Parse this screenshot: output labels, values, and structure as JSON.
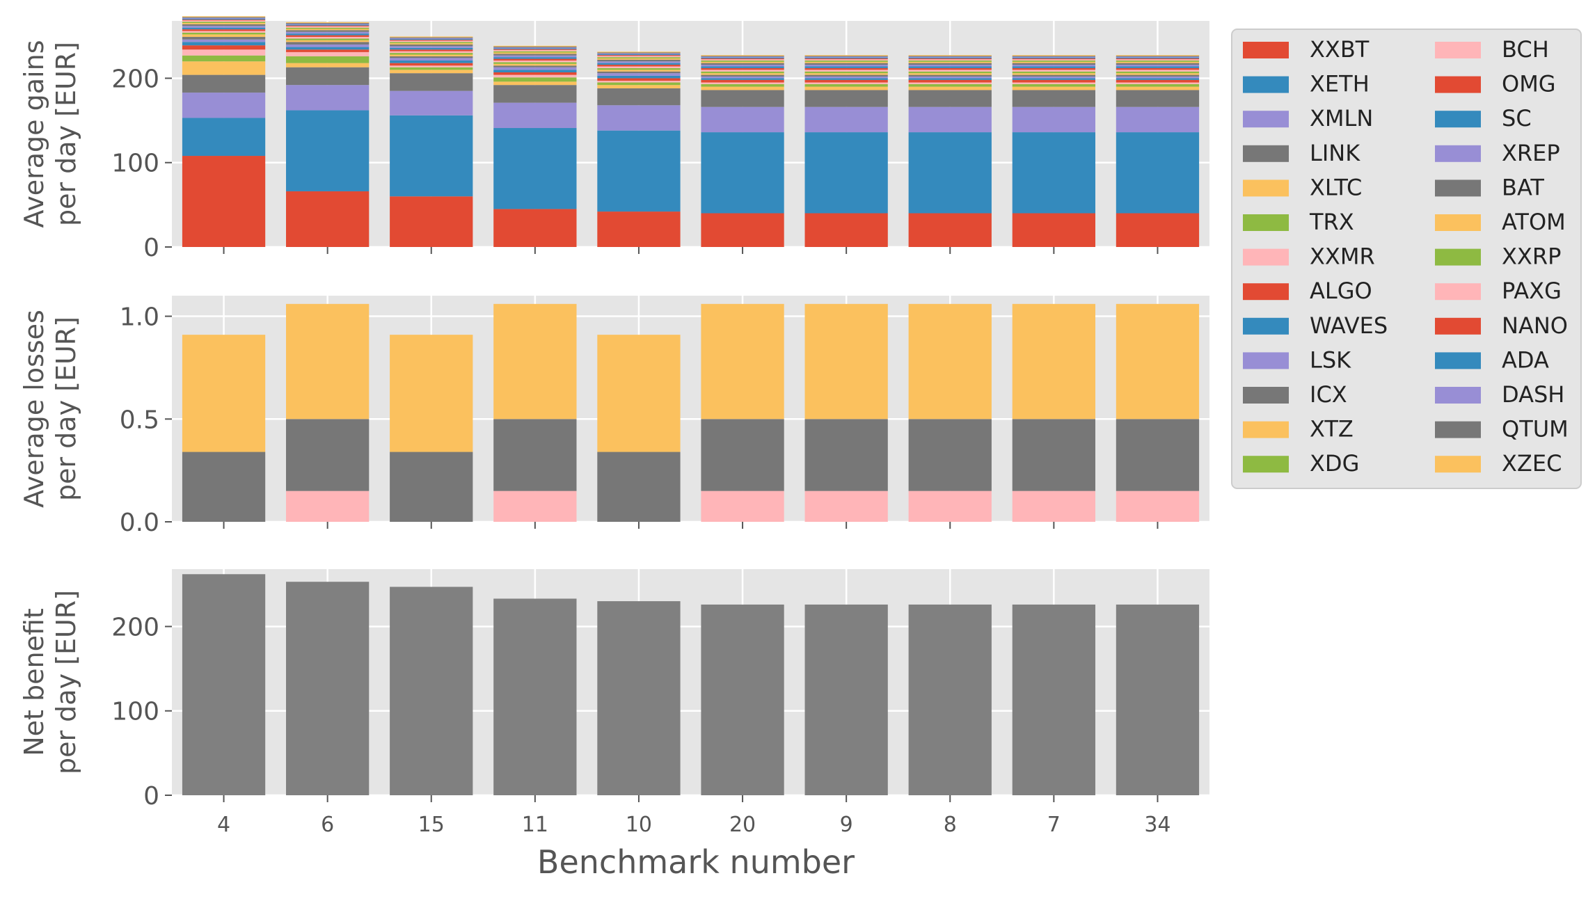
{
  "figure": {
    "xlabel": "Benchmark number",
    "categories": [
      "4",
      "6",
      "15",
      "11",
      "10",
      "20",
      "9",
      "8",
      "7",
      "34"
    ]
  },
  "chart_data": [
    {
      "type": "bar",
      "stacked": true,
      "ylabel_line1": "Average gains",
      "ylabel_line2": "per day [EUR]",
      "categories": [
        "4",
        "6",
        "15",
        "11",
        "10",
        "20",
        "9",
        "8",
        "7",
        "34"
      ],
      "ylim": [
        0,
        268
      ],
      "yticks": [
        "0",
        "100",
        "200"
      ],
      "ytick_values": [
        0,
        100,
        200
      ],
      "grid": true,
      "series": [
        {
          "name": "XXBT",
          "color": "#E24A33",
          "values": [
            108,
            66,
            60,
            45,
            42,
            40,
            40,
            40,
            40,
            40
          ]
        },
        {
          "name": "XETH",
          "color": "#348ABD",
          "values": [
            45,
            96,
            96,
            96,
            96,
            96,
            96,
            96,
            96,
            96
          ]
        },
        {
          "name": "XMLN",
          "color": "#988ED5",
          "values": [
            30,
            30,
            29,
            30,
            30,
            30,
            30,
            30,
            30,
            30
          ]
        },
        {
          "name": "LINK",
          "color": "#777777",
          "values": [
            21,
            21,
            21,
            21,
            20,
            20,
            20,
            20,
            20,
            20
          ]
        },
        {
          "name": "XLTC",
          "color": "#FBC15E",
          "values": [
            16,
            5,
            4,
            4,
            4,
            4,
            4,
            4,
            4,
            4
          ]
        },
        {
          "name": "TRX",
          "color": "#8EBA42",
          "values": [
            7,
            8,
            3,
            5,
            3,
            3,
            3,
            3,
            3,
            3
          ]
        },
        {
          "name": "XXMR",
          "color": "#FFB5B8",
          "values": [
            7,
            5,
            2,
            3,
            2,
            2,
            2,
            2,
            2,
            2
          ]
        },
        {
          "name": "ALGO",
          "color": "#E24A33",
          "values": [
            5,
            3,
            3,
            3,
            3,
            3,
            3,
            3,
            3,
            3
          ]
        },
        {
          "name": "WAVES",
          "color": "#348ABD",
          "values": [
            4,
            3,
            3,
            3,
            3,
            2,
            2,
            2,
            2,
            2
          ]
        },
        {
          "name": "LSK",
          "color": "#988ED5",
          "values": [
            3,
            3,
            3,
            3,
            3,
            2,
            2,
            2,
            2,
            2
          ]
        },
        {
          "name": "ICX",
          "color": "#777777",
          "values": [
            3,
            3,
            2,
            2,
            2,
            2,
            2,
            2,
            2,
            2
          ]
        },
        {
          "name": "XTZ",
          "color": "#FBC15E",
          "values": [
            3,
            2,
            2,
            2,
            2,
            2,
            2,
            2,
            2,
            2
          ]
        },
        {
          "name": "XDG",
          "color": "#8EBA42",
          "values": [
            2,
            2,
            2,
            2,
            2,
            2,
            2,
            2,
            2,
            2
          ]
        },
        {
          "name": "BCH",
          "color": "#FFB5B8",
          "values": [
            2,
            2,
            2,
            2,
            2,
            2,
            2,
            2,
            2,
            2
          ]
        },
        {
          "name": "OMG",
          "color": "#E24A33",
          "values": [
            2,
            2,
            2,
            2,
            2,
            2,
            2,
            2,
            2,
            2
          ]
        },
        {
          "name": "SC",
          "color": "#348ABD",
          "values": [
            2,
            2,
            2,
            2,
            2,
            2,
            2,
            2,
            2,
            2
          ]
        },
        {
          "name": "XREP",
          "color": "#988ED5",
          "values": [
            2,
            2,
            2,
            2,
            2,
            2,
            2,
            2,
            2,
            2
          ]
        },
        {
          "name": "BAT",
          "color": "#777777",
          "values": [
            2,
            2,
            2,
            2,
            2,
            2,
            2,
            2,
            2,
            2
          ]
        },
        {
          "name": "ATOM",
          "color": "#FBC15E",
          "values": [
            1.5,
            1.5,
            1.5,
            1.5,
            1.5,
            1.5,
            1.5,
            1.5,
            1.5,
            1.5
          ]
        },
        {
          "name": "XXRP",
          "color": "#8EBA42",
          "values": [
            1.5,
            1.5,
            1.5,
            1.5,
            1.5,
            1.5,
            1.5,
            1.5,
            1.5,
            1.5
          ]
        },
        {
          "name": "PAXG",
          "color": "#FFB5B8",
          "values": [
            1.5,
            1.5,
            1.5,
            1.5,
            1.5,
            1.5,
            1.5,
            1.5,
            1.5,
            1.5
          ]
        },
        {
          "name": "NANO",
          "color": "#E24A33",
          "values": [
            1,
            1,
            1,
            1,
            1,
            1,
            1,
            1,
            1,
            1
          ]
        },
        {
          "name": "ADA",
          "color": "#348ABD",
          "values": [
            1,
            1,
            1,
            1,
            1,
            1,
            1,
            1,
            1,
            1
          ]
        },
        {
          "name": "DASH",
          "color": "#988ED5",
          "values": [
            1,
            1,
            1,
            1,
            1,
            1,
            1,
            1,
            1,
            1
          ]
        },
        {
          "name": "QTUM",
          "color": "#777777",
          "values": [
            1,
            1,
            1,
            1,
            1,
            1,
            1,
            1,
            1,
            1
          ]
        },
        {
          "name": "XZEC",
          "color": "#FBC15E",
          "values": [
            1,
            1,
            1,
            1,
            1,
            1,
            1,
            1,
            1,
            1
          ]
        }
      ]
    },
    {
      "type": "bar",
      "stacked": true,
      "ylabel_line1": "Average losses",
      "ylabel_line2": "per day [EUR]",
      "categories": [
        "4",
        "6",
        "15",
        "11",
        "10",
        "20",
        "9",
        "8",
        "7",
        "34"
      ],
      "ylim": [
        0,
        1.1
      ],
      "yticks": [
        "0.0",
        "0.5",
        "1.0"
      ],
      "ytick_values": [
        0,
        0.5,
        1.0
      ],
      "grid": true,
      "series": [
        {
          "color": "#FFB5B8",
          "values": [
            0,
            0.15,
            0,
            0.15,
            0,
            0.15,
            0.15,
            0.15,
            0.15,
            0.15
          ]
        },
        {
          "color": "#777777",
          "values": [
            0.34,
            0.35,
            0.34,
            0.35,
            0.34,
            0.35,
            0.35,
            0.35,
            0.35,
            0.35
          ]
        },
        {
          "color": "#FBC15E",
          "values": [
            0.57,
            0.56,
            0.57,
            0.56,
            0.57,
            0.56,
            0.56,
            0.56,
            0.56,
            0.56
          ]
        }
      ]
    },
    {
      "type": "bar",
      "ylabel_line1": "Net benefit",
      "ylabel_line2": "per day [EUR]",
      "categories": [
        "4",
        "6",
        "15",
        "11",
        "10",
        "20",
        "9",
        "8",
        "7",
        "34"
      ],
      "ylim": [
        0,
        268
      ],
      "yticks": [
        "0",
        "100",
        "200"
      ],
      "ytick_values": [
        0,
        100,
        200
      ],
      "grid": true,
      "series": [
        {
          "color": "#808080",
          "values": [
            262,
            253,
            247,
            233,
            230,
            226,
            226,
            226,
            226,
            226
          ]
        }
      ]
    }
  ],
  "legend": {
    "placement": "right",
    "columns": 2
  }
}
